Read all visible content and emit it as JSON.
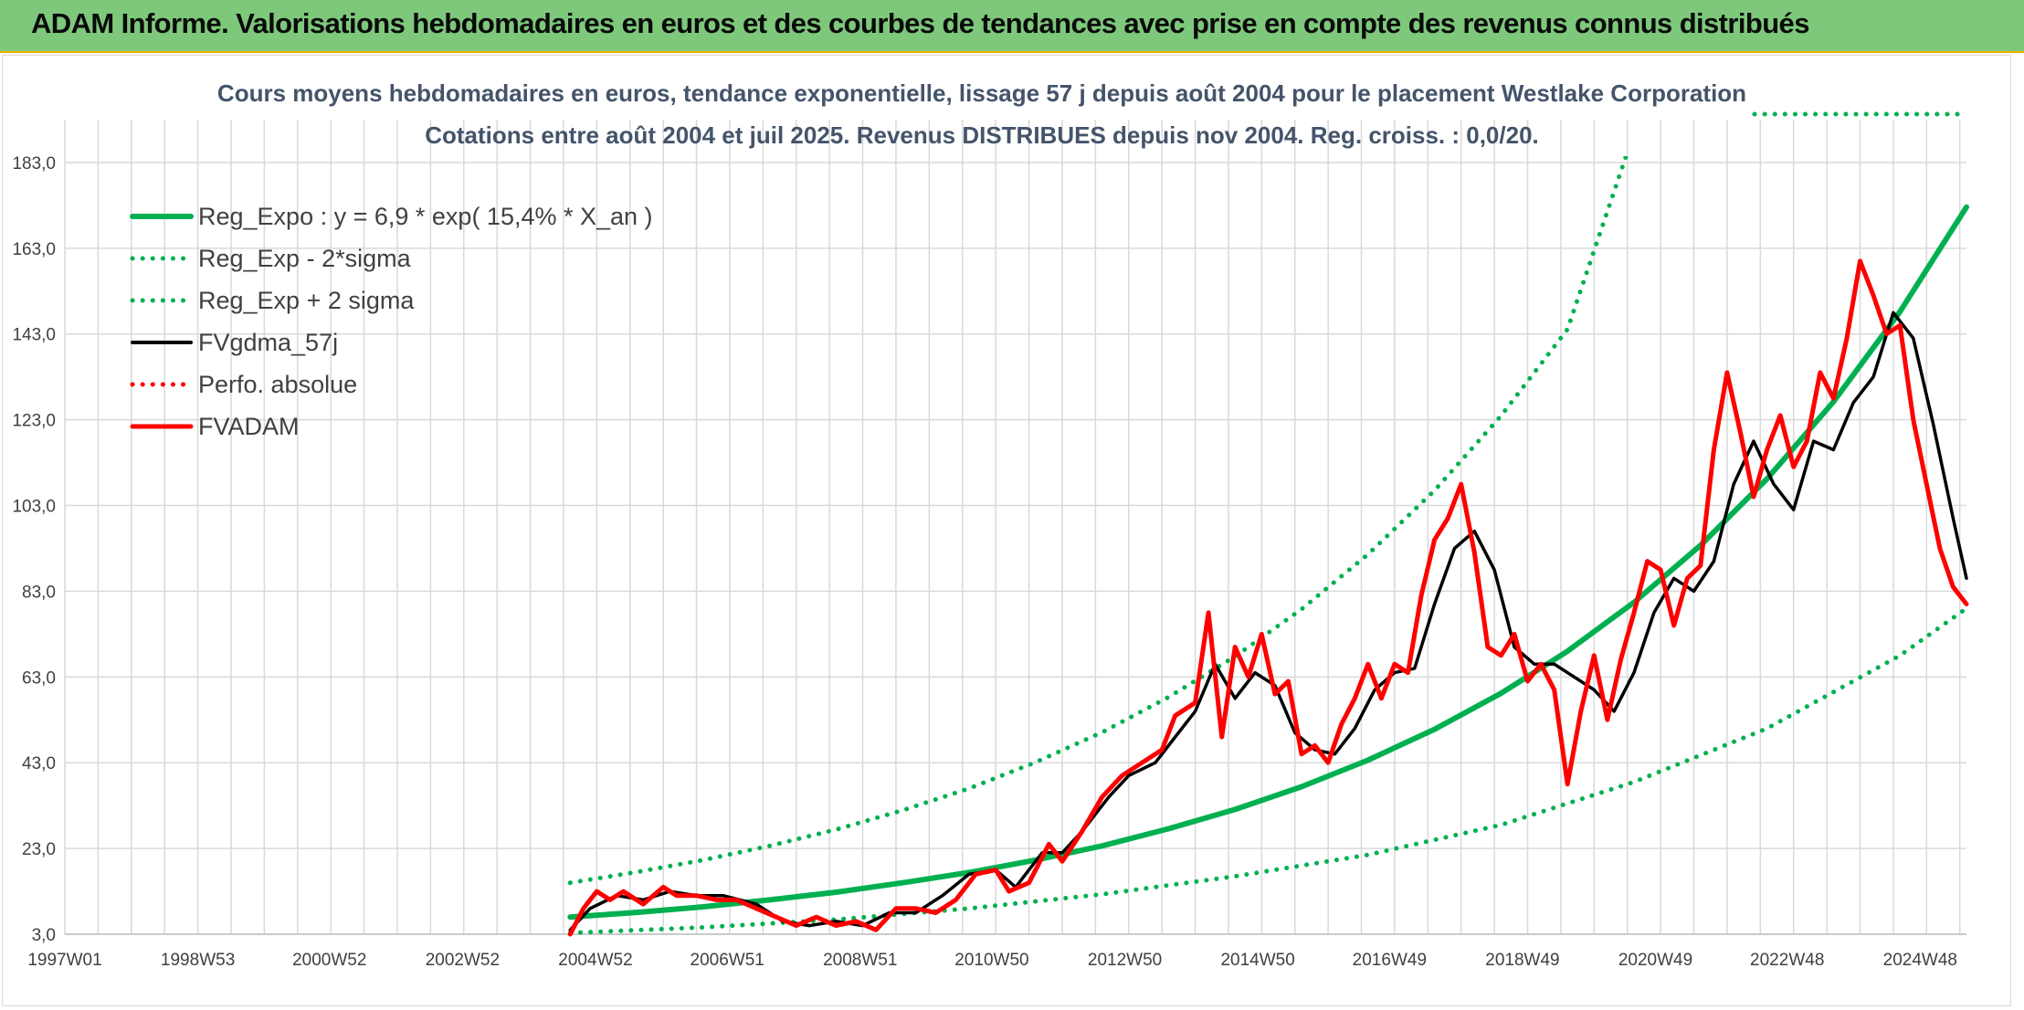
{
  "header": {
    "title": "ADAM Informe. Valorisations hebdomadaires en euros et des courbes de tendances avec prise en compte des revenus connus distribués"
  },
  "colors": {
    "banner": "#7dc87a",
    "reg_expo": "#00b050",
    "fvgdma": "#000000",
    "fvadam": "#ff0000",
    "title_text": "#44546a"
  },
  "chart_data": {
    "type": "line",
    "title_lines": [
      "Cours moyens hebdomadaires en euros, tendance exponentielle, lissage 57 j depuis août 2004 pour le placement Westlake Corporation",
      "Cotations entre août 2004 et juil 2025. Revenus DISTRIBUES depuis nov 2004. Reg. croiss. : 0,0/20."
    ],
    "x_ticks": [
      "1997W01",
      "1998W53",
      "2000W52",
      "2002W52",
      "2004W52",
      "2006W51",
      "2008W51",
      "2010W50",
      "2012W50",
      "2014W50",
      "2016W49",
      "2018W49",
      "2020W49",
      "2022W48",
      "2024W48"
    ],
    "x_range": [
      1997.0,
      2025.6
    ],
    "y_ticks": [
      "3,0",
      "23,0",
      "43,0",
      "63,0",
      "83,0",
      "103,0",
      "123,0",
      "143,0",
      "163,0",
      "183,0"
    ],
    "ylim": [
      3,
      193
    ],
    "grid": true,
    "legend_position": "top-left",
    "series": [
      {
        "name": "Reg_Expo : y = 6,9 * exp( 15,4% *  X_an )",
        "color": "#00b050",
        "style": "solid",
        "x": [
          2004.6,
          2005.6,
          2006.6,
          2007.6,
          2008.6,
          2009.6,
          2010.6,
          2011.6,
          2012.6,
          2013.6,
          2014.6,
          2015.6,
          2016.6,
          2017.6,
          2018.6,
          2019.6,
          2020.6,
          2021.6,
          2022.6,
          2023.6,
          2024.6,
          2025.6
        ],
        "y": [
          7.0,
          8.1,
          9.4,
          11.0,
          12.8,
          15.0,
          17.4,
          20.3,
          23.6,
          27.6,
          32.1,
          37.4,
          43.6,
          50.8,
          59.2,
          69.0,
          80.4,
          93.7,
          109.2,
          127.2,
          148.2,
          172.6
        ]
      },
      {
        "name": "Reg_Exp - 2*sigma",
        "color": "#00b050",
        "style": "dotted",
        "x": [
          2004.6,
          2006.6,
          2008.6,
          2010.6,
          2012.6,
          2014.6,
          2016.6,
          2018.6,
          2020.6,
          2022.6,
          2024.6,
          2025.6
        ],
        "y": [
          3.3,
          4.6,
          6.4,
          9.0,
          12.3,
          16.5,
          21.5,
          28.5,
          38.5,
          51.0,
          68.0,
          79.0
        ]
      },
      {
        "name": "Reg_Exp + 2 sigma",
        "color": "#00b050",
        "style": "dotted",
        "x": [
          2004.6,
          2005.6,
          2006.6,
          2007.6,
          2008.6,
          2009.6,
          2010.6,
          2011.6,
          2012.6,
          2013.6,
          2014.6,
          2015.6,
          2016.6,
          2017.6,
          2018.6,
          2019.6,
          2020.6
        ],
        "y": [
          15.0,
          17.5,
          20.3,
          23.6,
          27.4,
          31.9,
          37.0,
          43.1,
          50.1,
          58.3,
          67.8,
          78.8,
          91.6,
          106.5,
          123.9,
          144.1,
          190.0
        ]
      },
      {
        "name": "FVgdma_57j",
        "color": "#000000",
        "style": "solid",
        "x": [
          2004.6,
          2004.9,
          2005.3,
          2005.7,
          2006.1,
          2006.5,
          2006.9,
          2007.4,
          2007.8,
          2008.2,
          2008.6,
          2009.0,
          2009.4,
          2009.8,
          2010.2,
          2010.6,
          2011.0,
          2011.3,
          2011.7,
          2012.0,
          2012.3,
          2012.7,
          2013.0,
          2013.4,
          2013.7,
          2014.0,
          2014.3,
          2014.6,
          2014.9,
          2015.2,
          2015.5,
          2015.8,
          2016.1,
          2016.4,
          2016.7,
          2017.0,
          2017.3,
          2017.6,
          2017.9,
          2018.2,
          2018.5,
          2018.8,
          2019.1,
          2019.4,
          2019.7,
          2020.0,
          2020.3,
          2020.6,
          2020.9,
          2021.2,
          2021.5,
          2021.8,
          2022.1,
          2022.4,
          2022.7,
          2023.0,
          2023.3,
          2023.6,
          2023.9,
          2024.2,
          2024.5,
          2024.8,
          2025.1,
          2025.4,
          2025.6
        ],
        "y": [
          4,
          9,
          12,
          11,
          13,
          12,
          12,
          10,
          6,
          5,
          6,
          5,
          8,
          8,
          12,
          17,
          18,
          14,
          22,
          22,
          27,
          35,
          40,
          43,
          49,
          55,
          66,
          58,
          64,
          61,
          50,
          46,
          45,
          51,
          60,
          64,
          65,
          80,
          93,
          97,
          88,
          70,
          66,
          66,
          63,
          60,
          55,
          64,
          78,
          86,
          83,
          90,
          108,
          118,
          108,
          102,
          118,
          116,
          127,
          133,
          148,
          142,
          122,
          100,
          86
        ]
      },
      {
        "name": "Perfo. absolue",
        "color": "#ff0000",
        "style": "dotted",
        "x": [],
        "y": []
      },
      {
        "name": "FVADAM",
        "color": "#ff0000",
        "style": "solid",
        "x": [
          2004.6,
          2004.8,
          2005.0,
          2005.2,
          2005.4,
          2005.7,
          2006.0,
          2006.2,
          2006.5,
          2006.8,
          2007.1,
          2007.4,
          2007.7,
          2008.0,
          2008.3,
          2008.6,
          2008.9,
          2009.2,
          2009.5,
          2009.8,
          2010.1,
          2010.4,
          2010.7,
          2011.0,
          2011.2,
          2011.5,
          2011.8,
          2012.0,
          2012.3,
          2012.6,
          2012.9,
          2013.2,
          2013.5,
          2013.7,
          2014.0,
          2014.2,
          2014.4,
          2014.6,
          2014.8,
          2015.0,
          2015.2,
          2015.4,
          2015.6,
          2015.8,
          2016.0,
          2016.2,
          2016.4,
          2016.6,
          2016.8,
          2017.0,
          2017.2,
          2017.4,
          2017.6,
          2017.8,
          2018.0,
          2018.2,
          2018.4,
          2018.6,
          2018.8,
          2019.0,
          2019.2,
          2019.4,
          2019.6,
          2019.8,
          2020.0,
          2020.2,
          2020.4,
          2020.6,
          2020.8,
          2021.0,
          2021.2,
          2021.4,
          2021.6,
          2021.8,
          2022.0,
          2022.2,
          2022.4,
          2022.6,
          2022.8,
          2023.0,
          2023.2,
          2023.4,
          2023.6,
          2023.8,
          2024.0,
          2024.2,
          2024.4,
          2024.6,
          2024.8,
          2025.0,
          2025.2,
          2025.4,
          2025.6
        ],
        "y": [
          3,
          9,
          13,
          11,
          13,
          10,
          14,
          12,
          12,
          11,
          11,
          9,
          7,
          5,
          7,
          5,
          6,
          4,
          9,
          9,
          8,
          11,
          17,
          18,
          13,
          15,
          24,
          20,
          27,
          35,
          40,
          43,
          46,
          54,
          57,
          78,
          49,
          70,
          63,
          73,
          59,
          62,
          45,
          47,
          43,
          52,
          58,
          66,
          58,
          66,
          64,
          82,
          95,
          100,
          108,
          92,
          70,
          68,
          73,
          62,
          66,
          60,
          38,
          55,
          68,
          53,
          67,
          78,
          90,
          88,
          75,
          86,
          89,
          116,
          134,
          120,
          105,
          116,
          124,
          112,
          118,
          134,
          128,
          142,
          160,
          152,
          143,
          145,
          123,
          108,
          93,
          84,
          80
        ]
      }
    ]
  }
}
